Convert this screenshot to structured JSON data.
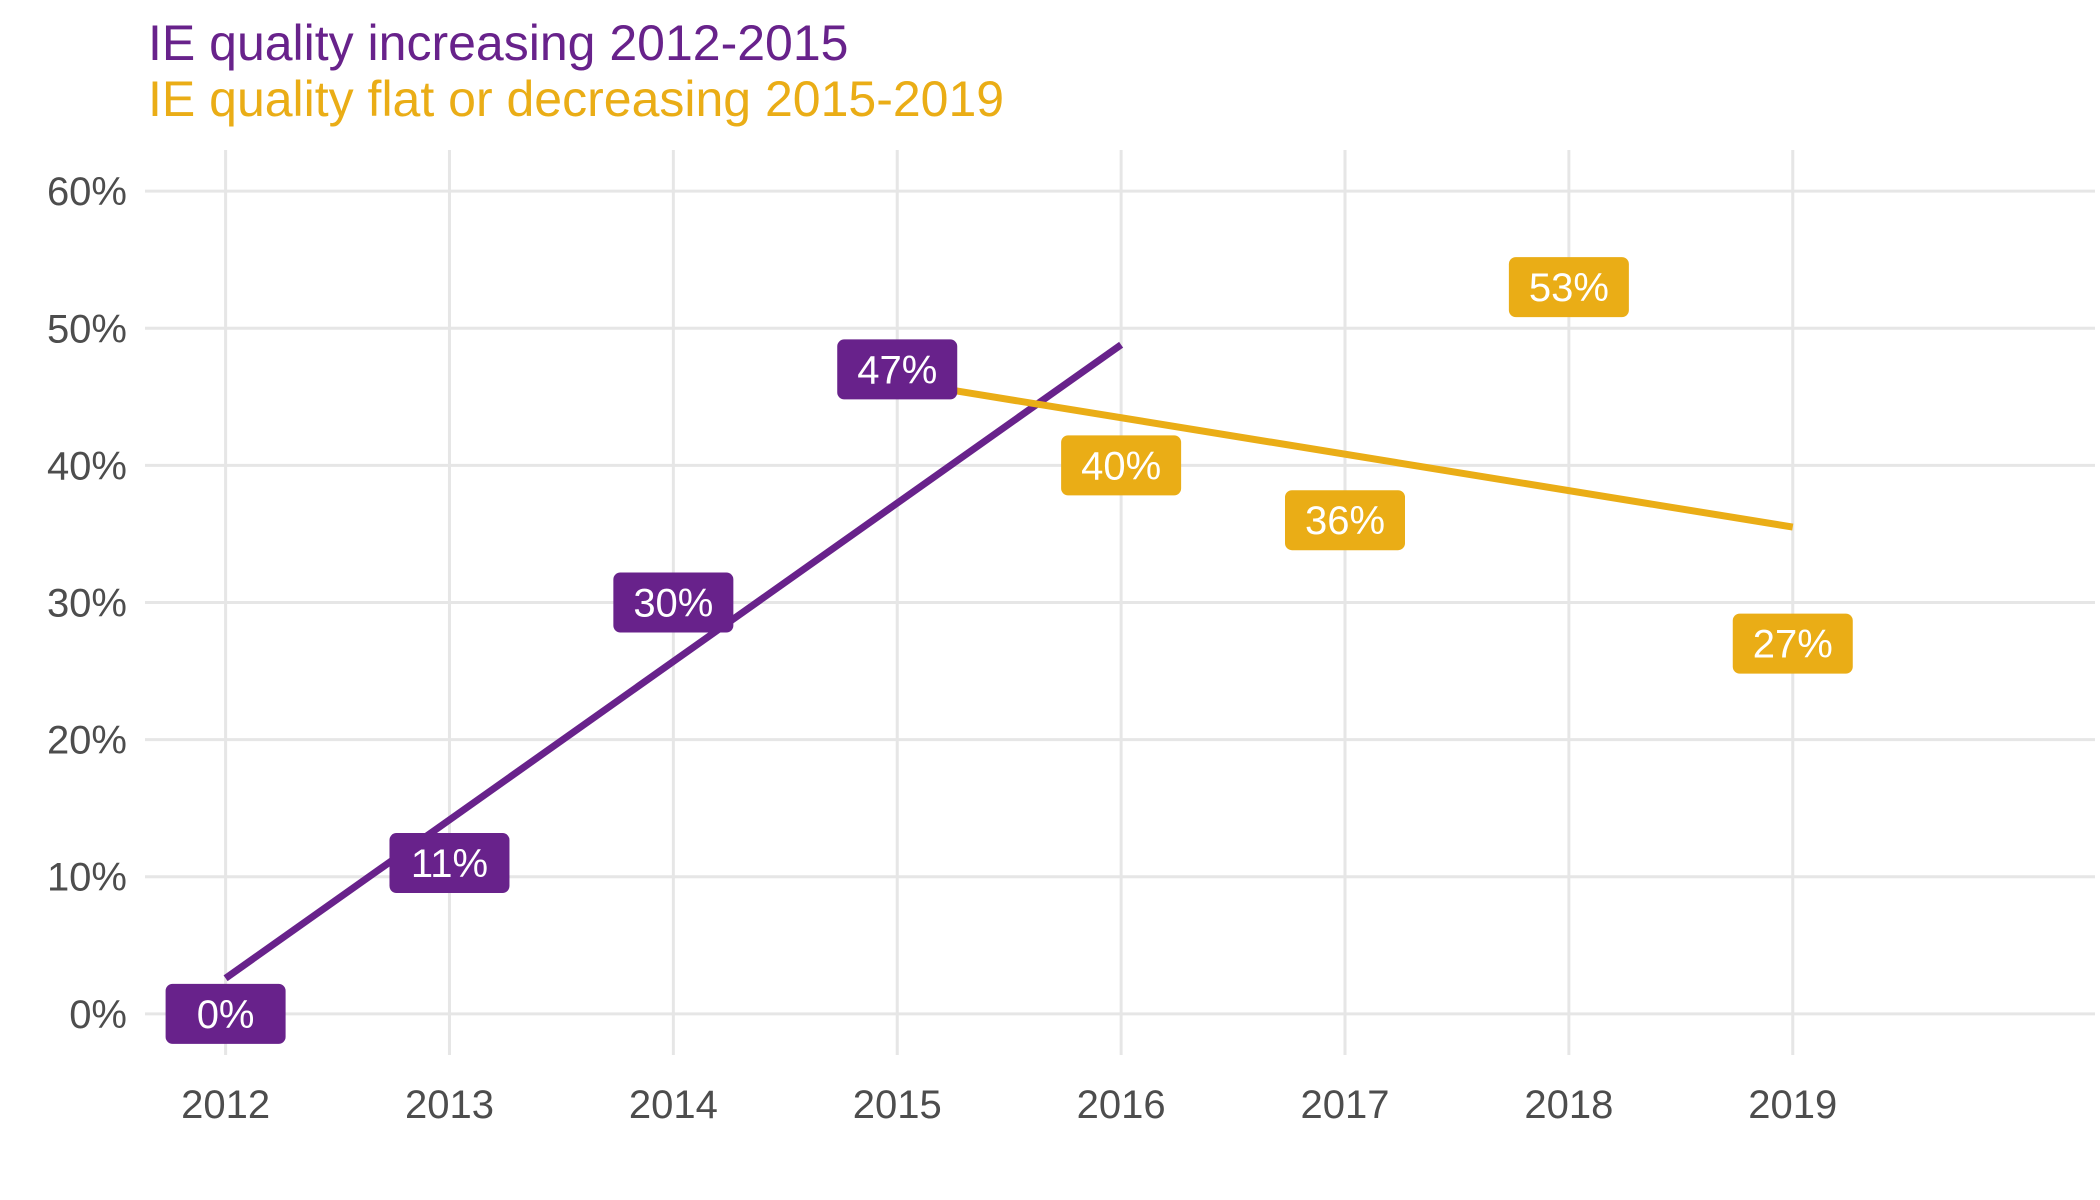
{
  "colors": {
    "increasing": "#68228B",
    "decreasing": "#EAAD16",
    "grid": "#e6e6e6",
    "tick_text": "#4d4d4d",
    "label_text": "#ffffff"
  },
  "chart_data": {
    "type": "line",
    "title_lines": [
      {
        "text": "IE quality increasing 2012-2015",
        "color": "#68228B"
      },
      {
        "text": "IE quality flat or decreasing 2015-2019",
        "color": "#EAAD16"
      }
    ],
    "xlabel": "",
    "ylabel": "",
    "x": [
      2012,
      2013,
      2014,
      2015,
      2016,
      2017,
      2018,
      2019
    ],
    "x_tick_labels": [
      "2012",
      "2013",
      "2014",
      "2015",
      "2016",
      "2017",
      "2018",
      "2019"
    ],
    "y_ticks": [
      0,
      10,
      20,
      30,
      40,
      50,
      60
    ],
    "y_tick_labels": [
      "0%",
      "10%",
      "20%",
      "30%",
      "40%",
      "50%",
      "60%"
    ],
    "xlim": [
      2011.64,
      2020.35
    ],
    "ylim": [
      -3,
      63
    ],
    "grid": true,
    "legend": "none",
    "series": [
      {
        "color": "#68228B",
        "points": [
          {
            "x": 2012,
            "y": 0,
            "label": "0%"
          },
          {
            "x": 2013,
            "y": 11,
            "label": "11%"
          },
          {
            "x": 2014,
            "y": 30,
            "label": "30%"
          },
          {
            "x": 2015,
            "y": 47,
            "label": "47%"
          }
        ],
        "trend": {
          "from": [
            2012,
            2.6
          ],
          "to": [
            2016,
            48.8
          ]
        }
      },
      {
        "color": "#EAAD16",
        "points": [
          {
            "x": 2016,
            "y": 40,
            "label": "40%"
          },
          {
            "x": 2017,
            "y": 36,
            "label": "36%"
          },
          {
            "x": 2018,
            "y": 53,
            "label": "53%"
          },
          {
            "x": 2019,
            "y": 27,
            "label": "27%"
          }
        ],
        "trend": {
          "from": [
            2015.2,
            45.6
          ],
          "to": [
            2019,
            35.5
          ]
        }
      }
    ]
  }
}
